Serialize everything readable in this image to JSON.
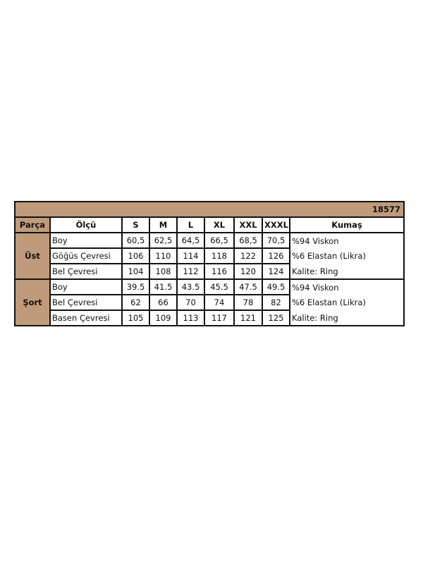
{
  "title": "18577",
  "headers": [
    "Parça",
    "Ölçü",
    "S",
    "M",
    "L",
    "XL",
    "XXL",
    "XXXL",
    "Kumaş"
  ],
  "groups": [
    {
      "part": "Üst",
      "rows": [
        {
          "measure": "Boy",
          "values": [
            "60,5",
            "62,5",
            "64,5",
            "66,5",
            "68,5",
            "70,5"
          ],
          "fabric": "%94 Viskon"
        },
        {
          "measure": "Göğüs Çevresi",
          "values": [
            "106",
            "110",
            "114",
            "118",
            "122",
            "126"
          ],
          "fabric": "%6 Elastan (Likra)"
        },
        {
          "measure": "Bel Çevresi",
          "values": [
            "104",
            "108",
            "112",
            "116",
            "120",
            "124"
          ],
          "fabric": "Kalite: Ring"
        }
      ]
    },
    {
      "part": "Şort",
      "rows": [
        {
          "measure": "Boy",
          "values": [
            "39.5",
            "41.5",
            "43.5",
            "45.5",
            "47.5",
            "49.5"
          ],
          "fabric": "%94 Viskon"
        },
        {
          "measure": "Bel Çevresi",
          "values": [
            "62",
            "66",
            "70",
            "74",
            "78",
            "82"
          ],
          "fabric": "%6 Elastan (Likra)"
        },
        {
          "measure": "Basen Çevresi",
          "values": [
            "105",
            "109",
            "113",
            "117",
            "121",
            "125"
          ],
          "fabric": "Kalite: Ring"
        }
      ]
    }
  ],
  "colors": {
    "header_bg": "#bf9b7a",
    "border": "#111111"
  }
}
